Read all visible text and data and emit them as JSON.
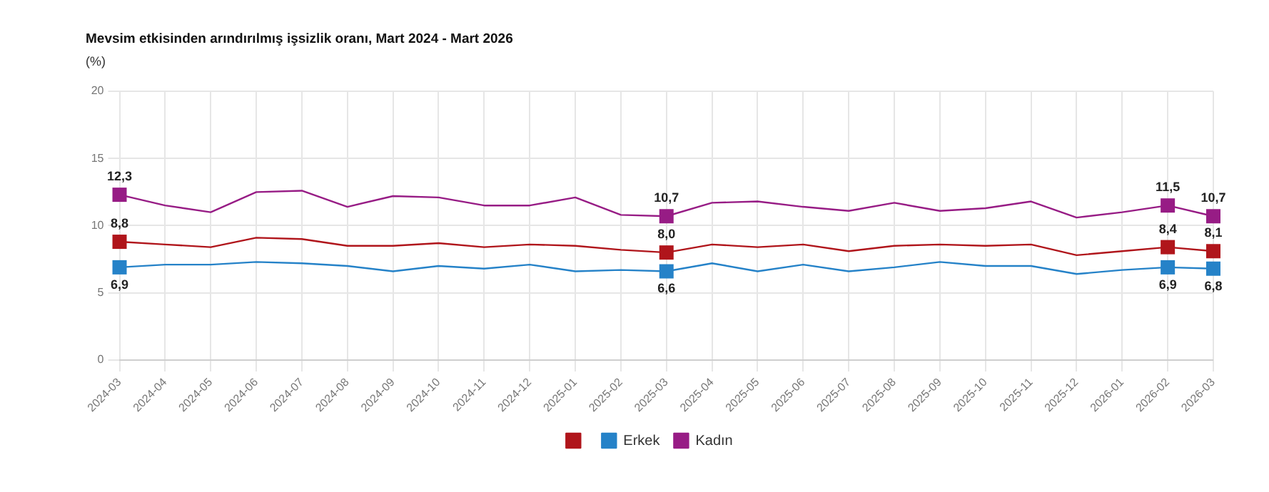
{
  "chart_data": {
    "type": "line",
    "title": "Mevsim etkisinden arındırılmış işsizlik oranı, Mart 2024 - Mart 2026",
    "subtitle": "(%)",
    "categories": [
      "2024-03",
      "2024-04",
      "2024-05",
      "2024-06",
      "2024-07",
      "2024-08",
      "2024-09",
      "2024-10",
      "2024-11",
      "2024-12",
      "2025-01",
      "2025-02",
      "2025-03",
      "2025-04",
      "2025-05",
      "2025-06",
      "2025-07",
      "2025-08",
      "2025-09",
      "2025-10",
      "2025-11",
      "2025-12",
      "2026-01",
      "2026-02",
      "2026-03"
    ],
    "series": [
      {
        "color": "#b0151b",
        "values": [
          8.8,
          8.6,
          8.4,
          9.1,
          9.0,
          8.5,
          8.5,
          8.7,
          8.4,
          8.6,
          8.5,
          8.2,
          8.0,
          8.6,
          8.4,
          8.6,
          8.1,
          8.5,
          8.6,
          8.5,
          8.6,
          7.8,
          8.1,
          8.4,
          8.1
        ],
        "value_labels": [
          "8,8",
          null,
          null,
          null,
          null,
          null,
          null,
          null,
          null,
          null,
          null,
          null,
          "8,0",
          null,
          null,
          null,
          null,
          null,
          null,
          null,
          null,
          null,
          null,
          "8,4",
          "8,1"
        ]
      },
      {
        "name": "Erkek",
        "color": "#2582c8",
        "values": [
          6.9,
          7.1,
          7.1,
          7.3,
          7.2,
          7.0,
          6.6,
          7.0,
          6.8,
          7.1,
          6.6,
          6.7,
          6.6,
          7.2,
          6.6,
          7.1,
          6.6,
          6.9,
          7.3,
          7.0,
          7.0,
          6.4,
          6.7,
          6.9,
          6.8
        ],
        "value_labels": [
          "6,9",
          null,
          null,
          null,
          null,
          null,
          null,
          null,
          null,
          null,
          null,
          null,
          "6,6",
          null,
          null,
          null,
          null,
          null,
          null,
          null,
          null,
          null,
          null,
          "6,9",
          "6,8"
        ]
      },
      {
        "name": "Kadın",
        "color": "#971c85",
        "values": [
          12.3,
          11.5,
          11.0,
          12.5,
          12.6,
          11.4,
          12.2,
          12.1,
          11.5,
          11.5,
          12.1,
          10.8,
          10.7,
          11.7,
          11.8,
          11.4,
          11.1,
          11.7,
          11.1,
          11.3,
          11.8,
          10.6,
          11.0,
          11.5,
          10.7
        ],
        "value_labels": [
          "12,3",
          null,
          null,
          null,
          null,
          null,
          null,
          null,
          null,
          null,
          null,
          null,
          "10,7",
          null,
          null,
          null,
          null,
          null,
          null,
          null,
          null,
          null,
          null,
          "11,5",
          "10,7"
        ]
      }
    ],
    "ylim": [
      0,
      20
    ],
    "yticks": [
      0,
      5,
      10,
      15,
      20
    ],
    "grid": true,
    "legend": "bottom",
    "line_style": "solid"
  }
}
